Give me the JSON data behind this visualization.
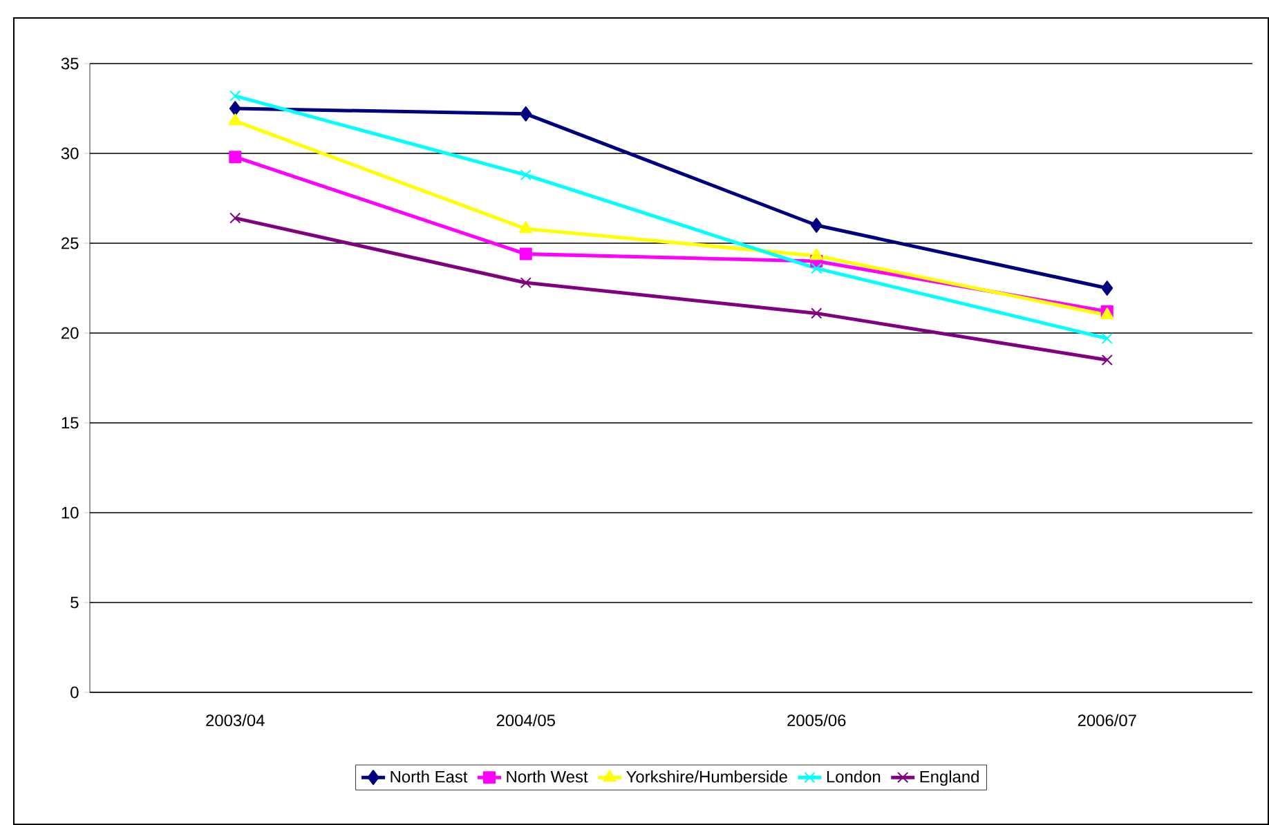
{
  "chart_data": {
    "type": "line",
    "categories": [
      "2003/04",
      "2004/05",
      "2005/06",
      "2006/07"
    ],
    "series": [
      {
        "name": "North East",
        "color": "#000080",
        "marker": "diamond",
        "values": [
          32.5,
          32.2,
          26.0,
          22.5
        ]
      },
      {
        "name": "North West",
        "color": "#ff00ff",
        "marker": "square",
        "values": [
          29.8,
          24.4,
          24.0,
          21.2
        ]
      },
      {
        "name": "Yorkshire/Humberside",
        "color": "#ffff00",
        "marker": "triangle",
        "values": [
          31.8,
          25.8,
          24.3,
          21.0
        ]
      },
      {
        "name": "London",
        "color": "#00ffff",
        "marker": "cross",
        "values": [
          33.2,
          28.8,
          23.6,
          19.7
        ]
      },
      {
        "name": "England",
        "color": "#800080",
        "marker": "cross",
        "values": [
          26.4,
          22.8,
          21.1,
          18.5
        ]
      }
    ],
    "ylim": [
      0,
      35
    ],
    "yticks": [
      0,
      5,
      10,
      15,
      20,
      25,
      30,
      35
    ],
    "grid": "y",
    "legend": "bottom",
    "line_style": "solid"
  }
}
